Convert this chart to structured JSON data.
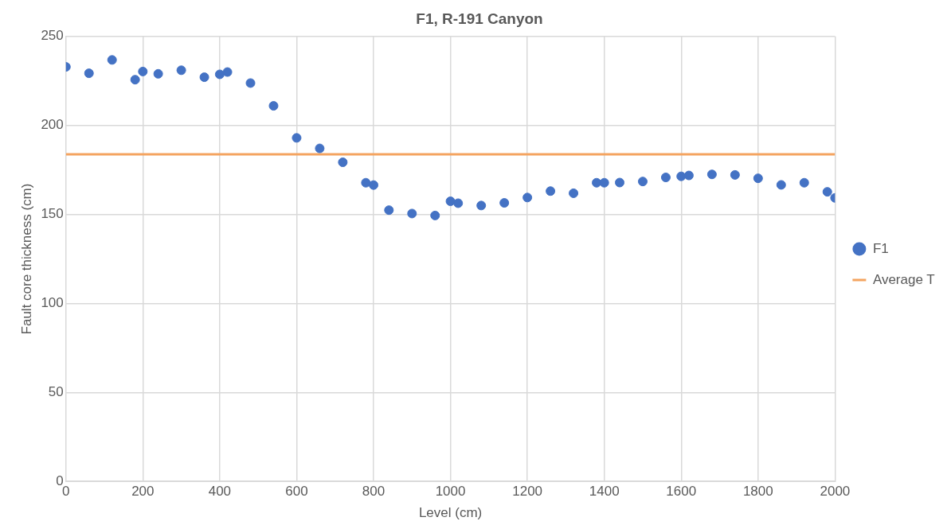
{
  "chart_data": {
    "type": "scatter",
    "title": "F1, R-191 Canyon",
    "xlabel": "Level (cm)",
    "ylabel": "Fault core thickness (cm)",
    "xlim": [
      0,
      2000
    ],
    "xticks": [
      0,
      200,
      400,
      600,
      800,
      1000,
      1200,
      1400,
      1600,
      1800,
      2000
    ],
    "ylim": [
      0,
      250
    ],
    "yticks": [
      0,
      50,
      100,
      150,
      200,
      250
    ],
    "grid": true,
    "legend": "right",
    "series": [
      {
        "name": "F1",
        "marker": "circle",
        "color": "#4472c4",
        "x": [
          0,
          60,
          120,
          180,
          200,
          240,
          300,
          360,
          400,
          420,
          480,
          540,
          600,
          660,
          720,
          780,
          800,
          840,
          900,
          960,
          1000,
          1020,
          1080,
          1140,
          1200,
          1260,
          1320,
          1380,
          1400,
          1440,
          1500,
          1560,
          1600,
          1620,
          1680,
          1740,
          1800,
          1860,
          1920,
          1980,
          2000
        ],
        "values": [
          232.9,
          229.3,
          236.8,
          225.7,
          230.3,
          229,
          231,
          227.1,
          228.7,
          230,
          223.8,
          211,
          193,
          187.1,
          179.3,
          167.8,
          166.5,
          152.4,
          150.5,
          149.4,
          157.4,
          156.3,
          155,
          156.5,
          159.5,
          163.1,
          161.9,
          167.8,
          167.8,
          167.9,
          168.5,
          170.8,
          171.4,
          171.9,
          172.5,
          172.2,
          170.3,
          166.6,
          167.8,
          162.7,
          159.3
        ]
      },
      {
        "name": "Average T",
        "type": "line",
        "marker": "none",
        "color": "#f4a460",
        "x": [
          0,
          2000
        ],
        "values": [
          183.8,
          183.8
        ]
      }
    ]
  }
}
